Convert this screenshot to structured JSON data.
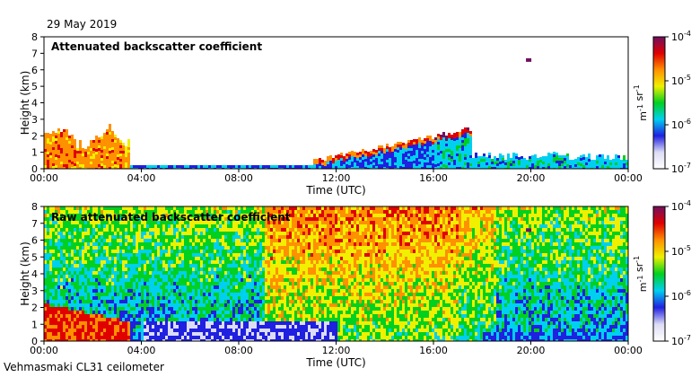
{
  "header": {
    "date": "29 May 2019"
  },
  "footer": {
    "instrument": "Vehmasmaki CL31 ceilometer"
  },
  "colors": {
    "colormap": [
      "#ffffff",
      "#dcdcf5",
      "#2020e0",
      "#00d0f0",
      "#00d020",
      "#f0f000",
      "#ff9000",
      "#e00000",
      "#701060"
    ]
  },
  "chart_data": [
    {
      "type": "heatmap",
      "title": "Attenuated backscatter coefficient",
      "xlabel": "Time (UTC)",
      "ylabel": "Height (km)",
      "x_ticks": [
        "00:00",
        "04:00",
        "08:00",
        "12:00",
        "16:00",
        "20:00",
        "00:00"
      ],
      "y_ticks": [
        "0",
        "1",
        "2",
        "3",
        "4",
        "5",
        "6",
        "7",
        "8"
      ],
      "ylim": [
        0,
        8
      ],
      "colorbar": {
        "unit": "m-1 sr-1",
        "scale": "log",
        "tick_labels": [
          "10-7",
          "10-6",
          "10-5",
          "10-4"
        ],
        "range": [
          1e-07,
          0.0001
        ]
      }
    },
    {
      "type": "heatmap",
      "title": "Raw attenuated backscatter coefficient",
      "xlabel": "Time (UTC)",
      "ylabel": "Height (km)",
      "x_ticks": [
        "00:00",
        "04:00",
        "08:00",
        "12:00",
        "16:00",
        "20:00",
        "00:00"
      ],
      "y_ticks": [
        "0",
        "1",
        "2",
        "3",
        "4",
        "5",
        "6",
        "7",
        "8"
      ],
      "ylim": [
        0,
        8
      ],
      "colorbar": {
        "unit": "m-1 sr-1",
        "scale": "log",
        "tick_labels": [
          "10-7",
          "10-6",
          "10-5",
          "10-4"
        ],
        "range": [
          1e-07,
          0.0001
        ]
      }
    }
  ]
}
